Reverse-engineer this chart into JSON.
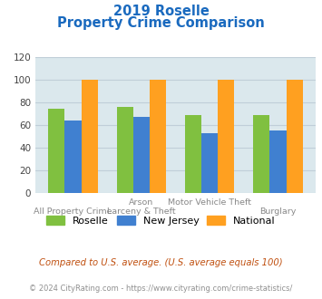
{
  "title_line1": "2019 Roselle",
  "title_line2": "Property Crime Comparison",
  "x_labels_top": [
    "",
    "Arson",
    "Motor Vehicle Theft",
    ""
  ],
  "x_labels_bottom": [
    "All Property Crime",
    "Larceny & Theft",
    "",
    "Burglary"
  ],
  "roselle": [
    74,
    76,
    69,
    69
  ],
  "new_jersey": [
    64,
    67,
    53,
    55
  ],
  "national": [
    100,
    100,
    100,
    100
  ],
  "bar_colors": {
    "roselle": "#80c040",
    "new_jersey": "#4080d0",
    "national": "#ffa020"
  },
  "ylim": [
    0,
    120
  ],
  "yticks": [
    0,
    20,
    40,
    60,
    80,
    100,
    120
  ],
  "title_color": "#1a6abf",
  "grid_color": "#c0ced8",
  "bg_color": "#dbe8ed",
  "footnote1": "Compared to U.S. average. (U.S. average equals 100)",
  "footnote2": "© 2024 CityRating.com - https://www.cityrating.com/crime-statistics/",
  "footnote1_color": "#c05010",
  "footnote2_color": "#909090",
  "legend_labels": [
    "Roselle",
    "New Jersey",
    "National"
  ]
}
